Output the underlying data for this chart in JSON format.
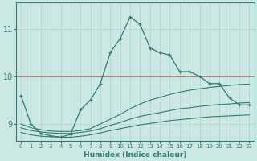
{
  "xlabel": "Humidex (Indice chaleur)",
  "ylabel": "",
  "bg_color": "#cce8e4",
  "line_color": "#2e7d6e",
  "grid_color": "#b8d8d4",
  "hline_color": "#cc7777",
  "xlim": [
    -0.5,
    23.5
  ],
  "ylim": [
    8.65,
    11.55
  ],
  "yticks": [
    9,
    10,
    11
  ],
  "xticks": [
    0,
    1,
    2,
    3,
    4,
    5,
    6,
    7,
    8,
    9,
    10,
    11,
    12,
    13,
    14,
    15,
    16,
    17,
    18,
    19,
    20,
    21,
    22,
    23
  ],
  "series": [
    {
      "x": [
        0,
        1,
        2,
        3,
        4,
        5,
        6,
        7,
        8,
        9,
        10,
        11,
        12,
        13,
        14,
        15,
        16,
        17,
        18,
        19,
        20,
        21,
        22,
        23
      ],
      "y": [
        9.6,
        9.0,
        8.8,
        8.75,
        8.72,
        8.78,
        9.3,
        9.5,
        9.85,
        10.5,
        10.8,
        11.25,
        11.1,
        10.6,
        10.5,
        10.45,
        10.1,
        10.1,
        10.0,
        9.85,
        9.85,
        9.55,
        9.4,
        9.4
      ],
      "marker": "+"
    },
    {
      "x": [
        0,
        1,
        2,
        3,
        4,
        5,
        6,
        7,
        8,
        9,
        10,
        11,
        12,
        13,
        14,
        15,
        16,
        17,
        18,
        19,
        20,
        21,
        22,
        23
      ],
      "y": [
        9.0,
        8.92,
        8.88,
        8.85,
        8.84,
        8.84,
        8.86,
        8.9,
        9.0,
        9.1,
        9.2,
        9.32,
        9.42,
        9.5,
        9.56,
        9.62,
        9.67,
        9.71,
        9.74,
        9.77,
        9.79,
        9.81,
        9.83,
        9.84
      ],
      "marker": null
    },
    {
      "x": [
        0,
        1,
        2,
        3,
        4,
        5,
        6,
        7,
        8,
        9,
        10,
        11,
        12,
        13,
        14,
        15,
        16,
        17,
        18,
        19,
        20,
        21,
        22,
        23
      ],
      "y": [
        8.92,
        8.86,
        8.83,
        8.81,
        8.8,
        8.8,
        8.82,
        8.85,
        8.9,
        8.97,
        9.03,
        9.1,
        9.16,
        9.2,
        9.24,
        9.28,
        9.32,
        9.34,
        9.37,
        9.39,
        9.41,
        9.42,
        9.44,
        9.45
      ],
      "marker": null
    },
    {
      "x": [
        0,
        1,
        2,
        3,
        4,
        5,
        6,
        7,
        8,
        9,
        10,
        11,
        12,
        13,
        14,
        15,
        16,
        17,
        18,
        19,
        20,
        21,
        22,
        23
      ],
      "y": [
        8.82,
        8.77,
        8.74,
        8.73,
        8.72,
        8.72,
        8.74,
        8.77,
        8.81,
        8.86,
        8.9,
        8.94,
        8.98,
        9.01,
        9.04,
        9.07,
        9.09,
        9.11,
        9.13,
        9.15,
        9.16,
        9.17,
        9.18,
        9.19
      ],
      "marker": null
    }
  ],
  "hline_y": 10.0
}
